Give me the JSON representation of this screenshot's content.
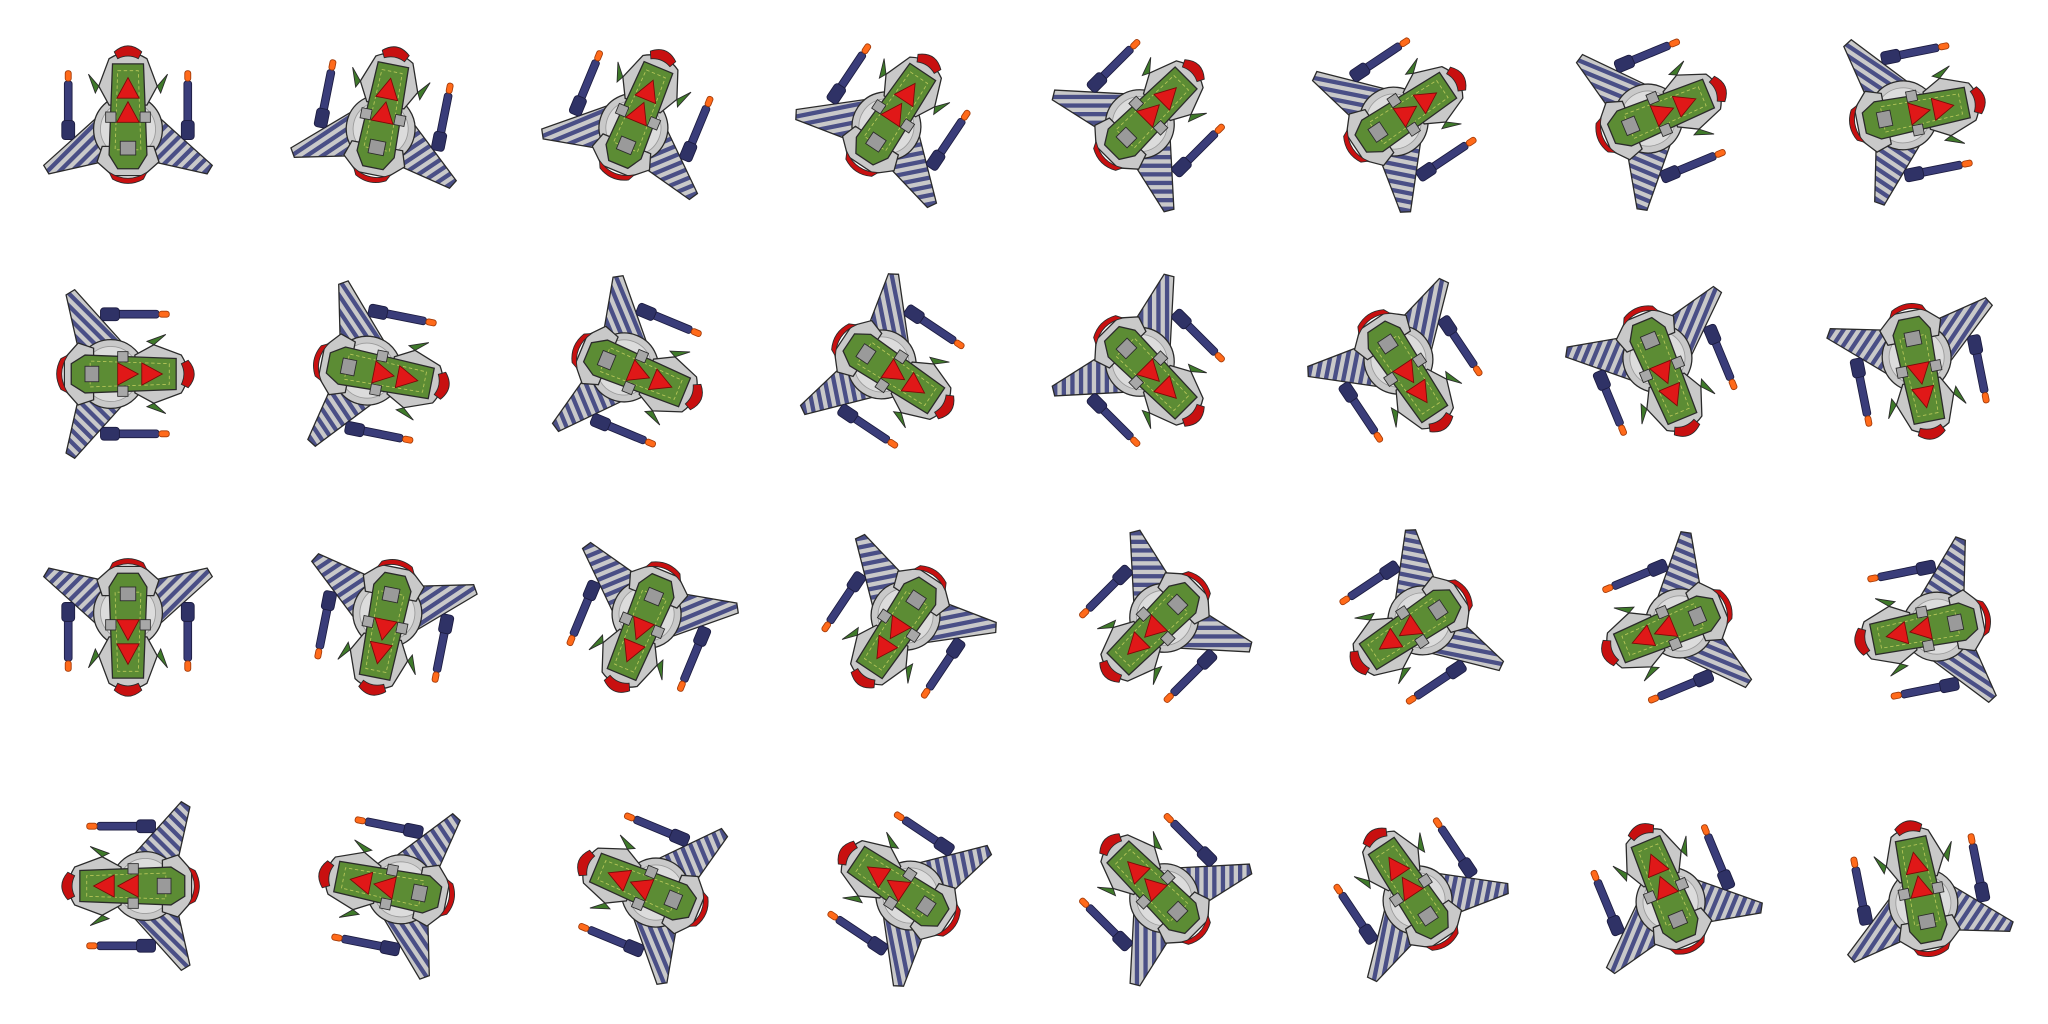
{
  "sprite_sheet": {
    "columns": 8,
    "rows": 4,
    "frame_count": 32,
    "subject": "spaceship-fighter",
    "colors": {
      "background": "#ffffff",
      "hull": "#c9c9c9",
      "hull_panel": "#dcdcdc",
      "hull_dark": "#9a9a9a",
      "stripe": "#4a4f86",
      "cockpit_green": "#5c8c34",
      "cockpit_green_dark": "#3c6a1f",
      "arrow_red": "#e01818",
      "nose_red": "#c81010",
      "cannon": "#3a3d7a",
      "cannon_tip": "#ff6a1a",
      "fin_green": "#3f7a2a",
      "outline": "#2a2a2a"
    }
  }
}
